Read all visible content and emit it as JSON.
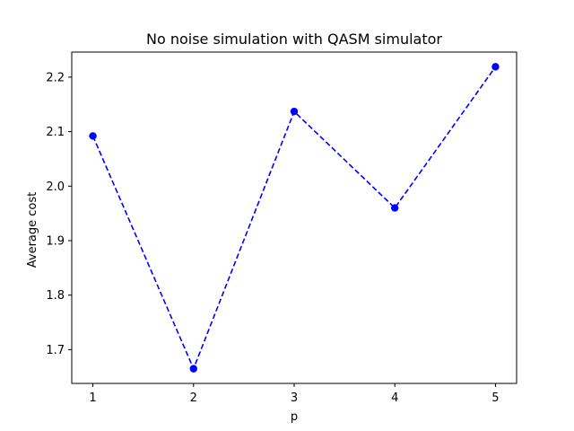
{
  "chart_data": {
    "type": "line",
    "title": "No noise simulation with QASM simulator",
    "xlabel": "p",
    "ylabel": "Average cost",
    "x": [
      1,
      2,
      3,
      4,
      5
    ],
    "series": [
      {
        "values": [
          2.092,
          1.665,
          2.137,
          1.96,
          2.219
        ],
        "color": "#0000ff",
        "line_style": "dashed",
        "marker": "circle"
      }
    ],
    "xlim": [
      0.79,
      5.21
    ],
    "ylim": [
      1.638,
      2.246
    ],
    "xticks": [
      1,
      2,
      3,
      4,
      5
    ],
    "yticks": [
      1.7,
      1.8,
      1.9,
      2.0,
      2.1,
      2.2
    ],
    "ytick_labels": [
      "1.7",
      "1.8",
      "1.9",
      "2.0",
      "2.1",
      "2.2"
    ],
    "grid": false,
    "legend": false
  }
}
